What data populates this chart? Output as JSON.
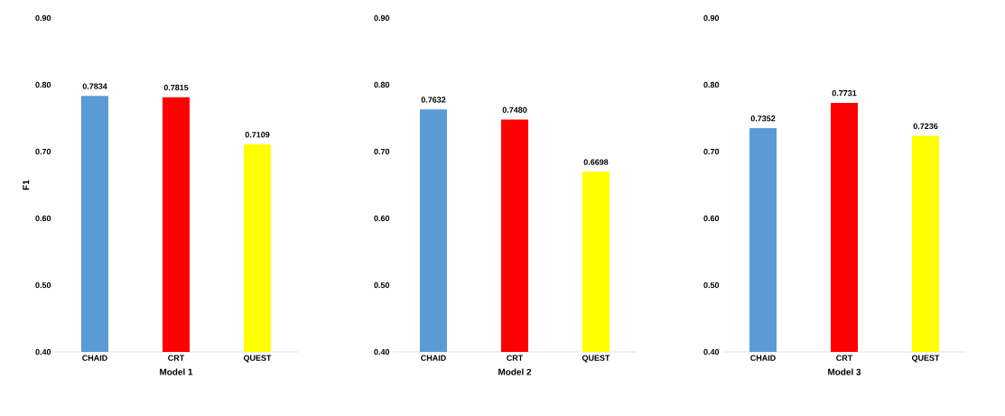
{
  "chart_data": [
    {
      "type": "bar",
      "xlabel": "Model 1",
      "ylabel": "F1",
      "categories": [
        "CHAID",
        "CRT",
        "QUEST"
      ],
      "values": [
        0.7834,
        0.7815,
        0.7109
      ],
      "value_labels": [
        "0.7834",
        "0.7815",
        "0.7109"
      ],
      "colors": [
        "#5b9bd5",
        "#ff0000",
        "#ffff00"
      ],
      "ylim": [
        0.4,
        0.9
      ],
      "yticks": [
        {
          "value": 0.4,
          "label": "0.40"
        },
        {
          "value": 0.5,
          "label": "0.50"
        },
        {
          "value": 0.6,
          "label": "0.60"
        },
        {
          "value": 0.7,
          "label": "0.70"
        },
        {
          "value": 0.8,
          "label": "0.80"
        },
        {
          "value": 0.9,
          "label": "0.90"
        }
      ]
    },
    {
      "type": "bar",
      "xlabel": "Model 2",
      "categories": [
        "CHAID",
        "CRT",
        "QUEST"
      ],
      "values": [
        0.7632,
        0.748,
        0.6698
      ],
      "value_labels": [
        "0.7632",
        "0.7480",
        "0.6698"
      ],
      "colors": [
        "#5b9bd5",
        "#ff0000",
        "#ffff00"
      ],
      "ylim": [
        0.4,
        0.9
      ],
      "yticks": [
        {
          "value": 0.4,
          "label": "0.40"
        },
        {
          "value": 0.5,
          "label": "0.50"
        },
        {
          "value": 0.6,
          "label": "0.60"
        },
        {
          "value": 0.7,
          "label": "0.70"
        },
        {
          "value": 0.8,
          "label": "0.80"
        },
        {
          "value": 0.9,
          "label": "0.90"
        }
      ]
    },
    {
      "type": "bar",
      "xlabel": "Model 3",
      "categories": [
        "CHAID",
        "CRT",
        "QUEST"
      ],
      "values": [
        0.7352,
        0.7731,
        0.7236
      ],
      "value_labels": [
        "0.7352",
        "0.7731",
        "0.7236"
      ],
      "colors": [
        "#5b9bd5",
        "#ff0000",
        "#ffff00"
      ],
      "ylim": [
        0.4,
        0.9
      ],
      "yticks": [
        {
          "value": 0.4,
          "label": "0.40"
        },
        {
          "value": 0.5,
          "label": "0.50"
        },
        {
          "value": 0.6,
          "label": "0.60"
        },
        {
          "value": 0.7,
          "label": "0.70"
        },
        {
          "value": 0.8,
          "label": "0.80"
        },
        {
          "value": 0.9,
          "label": "0.90"
        }
      ]
    }
  ]
}
